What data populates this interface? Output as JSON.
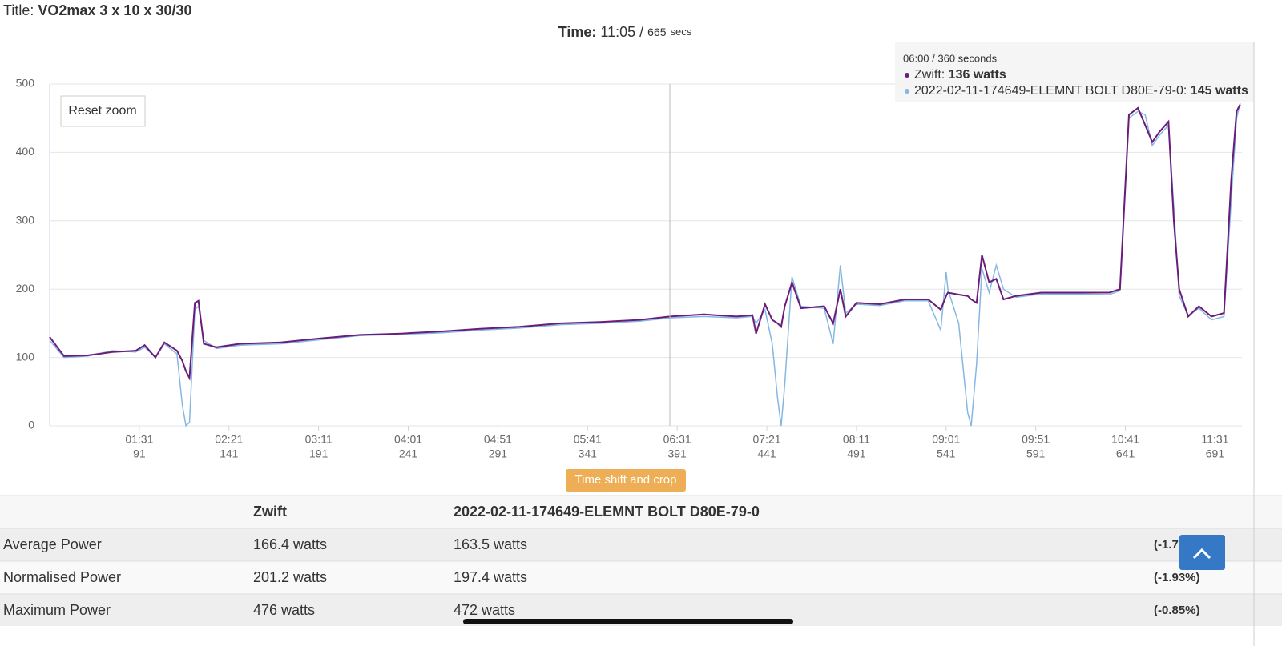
{
  "header": {
    "title_label": "Title:",
    "title": "VO2max 3 x 10 x 30/30",
    "time_label": "Time:",
    "time": "11:05 /",
    "duration": "665",
    "duration_unit": "secs"
  },
  "buttons": {
    "reset_zoom": "Reset zoom",
    "time_shift": "Time shift and crop"
  },
  "tooltip": {
    "header": "06:00 / 360 seconds",
    "items": [
      {
        "label": "Zwift:",
        "value": "136 watts"
      },
      {
        "label": "2022-02-11-174649-ELEMNT BOLT D80E-79-0:",
        "value": "145 watts"
      }
    ]
  },
  "chart_data": {
    "type": "line",
    "x": [
      41,
      49,
      62,
      76,
      89,
      94,
      100,
      105,
      112,
      115,
      117,
      119,
      122,
      124,
      127,
      134,
      147,
      170,
      192,
      214,
      237,
      259,
      281,
      303,
      326,
      348,
      370,
      387,
      406,
      424,
      433,
      435,
      440,
      444,
      447,
      449,
      451,
      455,
      460,
      473,
      478,
      482,
      485,
      491,
      504,
      518,
      531,
      538,
      541,
      542,
      548,
      553,
      555,
      558,
      561,
      565,
      569,
      573,
      580,
      594,
      616,
      632,
      638,
      643,
      648,
      652,
      656,
      660,
      665,
      668,
      671,
      676,
      682,
      689,
      696,
      700,
      703,
      705
    ],
    "series": [
      {
        "name": "2022-02-11-174649-ELEMNT BOLT D80E-79-0",
        "color": "#86b7e3",
        "values": [
          125,
          100,
          102,
          110,
          108,
          115,
          100,
          120,
          105,
          30,
          0,
          5,
          170,
          175,
          125,
          113,
          118,
          120,
          126,
          132,
          134,
          136,
          140,
          143,
          148,
          150,
          153,
          158,
          160,
          158,
          160,
          150,
          170,
          120,
          40,
          0,
          60,
          218,
          175,
          172,
          120,
          235,
          165,
          178,
          176,
          183,
          183,
          140,
          225,
          200,
          150,
          20,
          0,
          90,
          230,
          195,
          235,
          200,
          188,
          193,
          193,
          192,
          198,
          450,
          460,
          455,
          410,
          425,
          440,
          320,
          190,
          162,
          172,
          155,
          160,
          330,
          450,
          472
        ]
      },
      {
        "name": "Zwift",
        "color": "#6a1c7a",
        "values": [
          130,
          102,
          103,
          108,
          110,
          118,
          100,
          122,
          110,
          95,
          80,
          70,
          180,
          183,
          120,
          115,
          120,
          122,
          128,
          133,
          135,
          138,
          142,
          145,
          150,
          152,
          155,
          160,
          163,
          160,
          162,
          135,
          178,
          155,
          150,
          145,
          175,
          210,
          172,
          175,
          150,
          200,
          160,
          180,
          178,
          185,
          185,
          170,
          190,
          195,
          192,
          190,
          185,
          180,
          250,
          210,
          215,
          185,
          190,
          195,
          195,
          195,
          200,
          455,
          465,
          440,
          415,
          430,
          445,
          300,
          200,
          160,
          175,
          160,
          165,
          360,
          460,
          470
        ]
      }
    ],
    "xlim": [
      41,
      706
    ],
    "ylim": [
      0,
      500
    ],
    "xticks": [
      {
        "value": 91,
        "label": "01:31"
      },
      {
        "value": 141,
        "label": "02:21"
      },
      {
        "value": 191,
        "label": "03:11"
      },
      {
        "value": 241,
        "label": "04:01"
      },
      {
        "value": 291,
        "label": "04:51"
      },
      {
        "value": 341,
        "label": "05:41"
      },
      {
        "value": 391,
        "label": "06:31"
      },
      {
        "value": 441,
        "label": "07:21"
      },
      {
        "value": 491,
        "label": "08:11"
      },
      {
        "value": 541,
        "label": "09:01"
      },
      {
        "value": 591,
        "label": "09:51"
      },
      {
        "value": 641,
        "label": "10:41"
      },
      {
        "value": 691,
        "label": "11:31"
      }
    ],
    "yticks": [
      0,
      100,
      200,
      300,
      400,
      500
    ],
    "grid": true
  },
  "table": {
    "columns": [
      "Zwift",
      "2022-02-11-174649-ELEMNT BOLT D80E-79-0"
    ],
    "rows": [
      [
        "Average Power",
        "166.4 watts",
        "163.5 watts",
        "(-1.7"
      ],
      [
        "Normalised Power",
        "201.2 watts",
        "197.4 watts",
        "(-1.93%)"
      ],
      [
        "Maximum Power",
        "476 watts",
        "472 watts",
        "(-0.85%)"
      ]
    ]
  }
}
